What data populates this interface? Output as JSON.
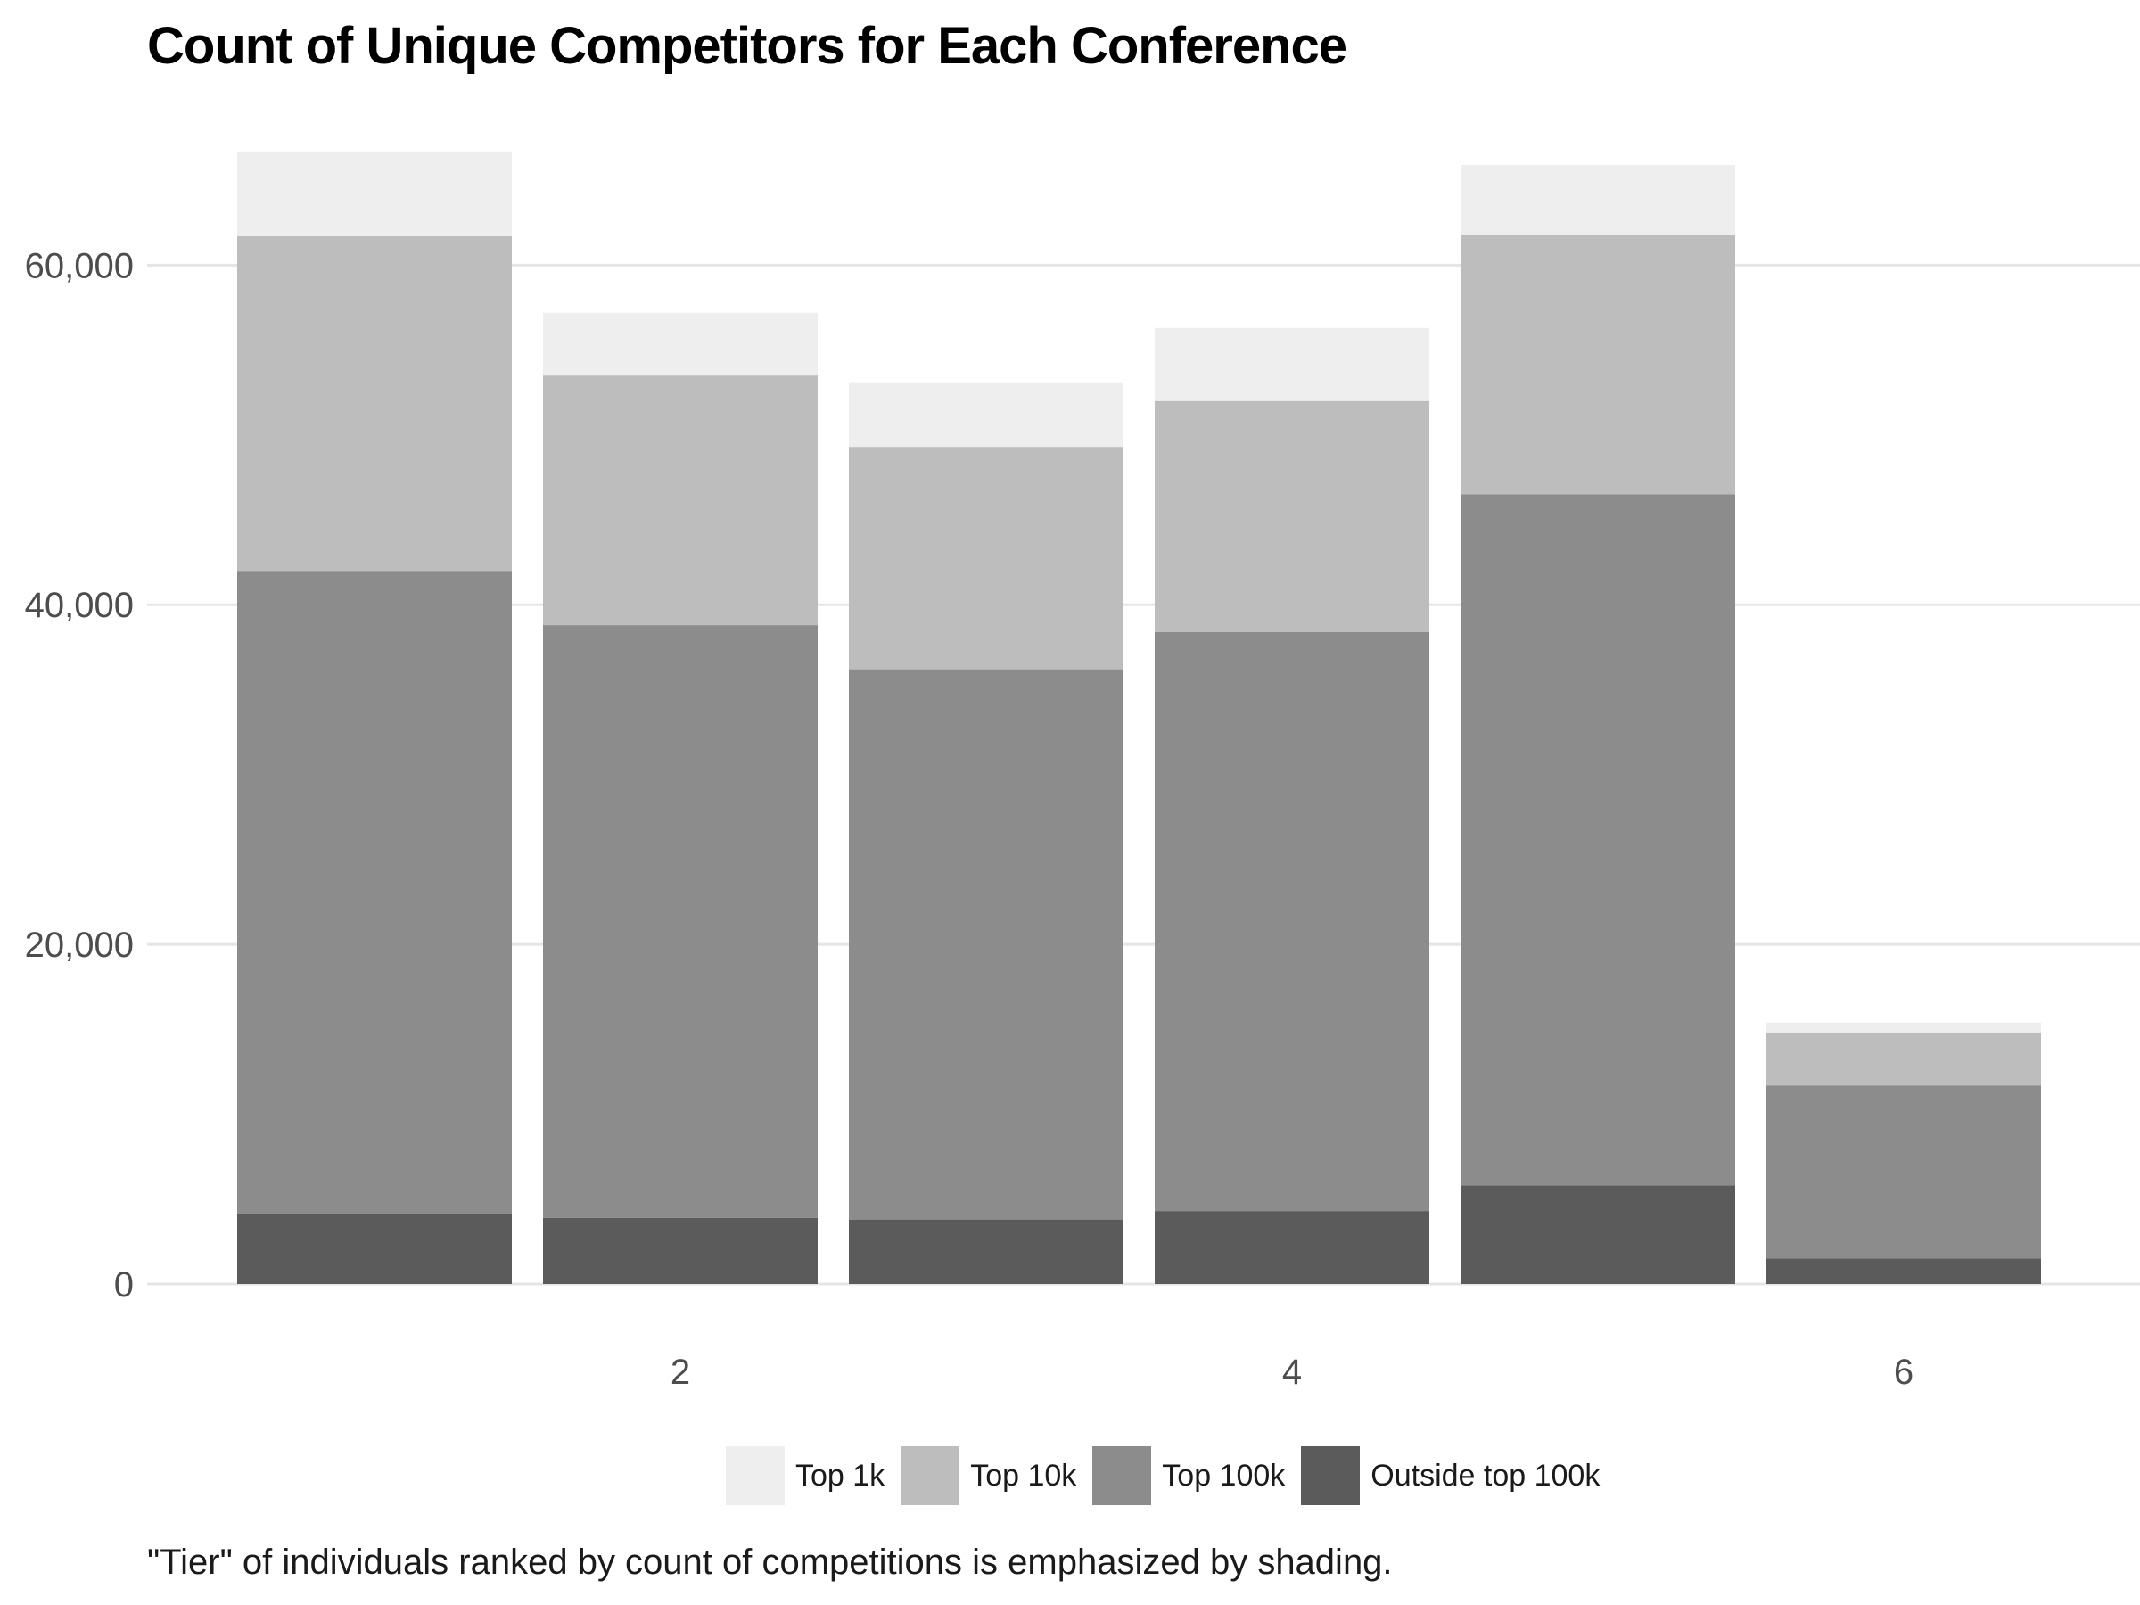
{
  "chart_data": {
    "type": "bar",
    "stacked": true,
    "title": "Count of Unique Competitors for Each Conference",
    "caption": "\"Tier\" of individuals ranked by count of competitions is emphasized by shading.",
    "xlabel": "",
    "ylabel": "",
    "x": [
      1,
      2,
      3,
      4,
      5,
      6
    ],
    "x_ticks": [
      "2",
      "4",
      "6"
    ],
    "x_tick_values": [
      2,
      4,
      6
    ],
    "y_ticks": [
      "0",
      "20,000",
      "40,000",
      "60,000"
    ],
    "y_tick_values": [
      0,
      20000,
      40000,
      60000
    ],
    "ylim": [
      0,
      68000
    ],
    "grid": true,
    "legend_position": "bottom",
    "series": [
      {
        "name": "Outside top 100k",
        "color": "#5b5b5b",
        "values": [
          4100,
          3900,
          3800,
          4300,
          5800,
          1500
        ]
      },
      {
        "name": "Top 100k",
        "color": "#8c8c8c",
        "values": [
          37900,
          34900,
          32400,
          34100,
          40700,
          10200
        ]
      },
      {
        "name": "Top 10k",
        "color": "#bdbdbd",
        "values": [
          19700,
          14700,
          13100,
          13600,
          15300,
          3100
        ]
      },
      {
        "name": "Top 1k",
        "color": "#eeeeee",
        "values": [
          5000,
          3700,
          3800,
          4300,
          4100,
          600
        ]
      }
    ],
    "legend_order": [
      "Top 1k",
      "Top 10k",
      "Top 100k",
      "Outside top 100k"
    ]
  }
}
